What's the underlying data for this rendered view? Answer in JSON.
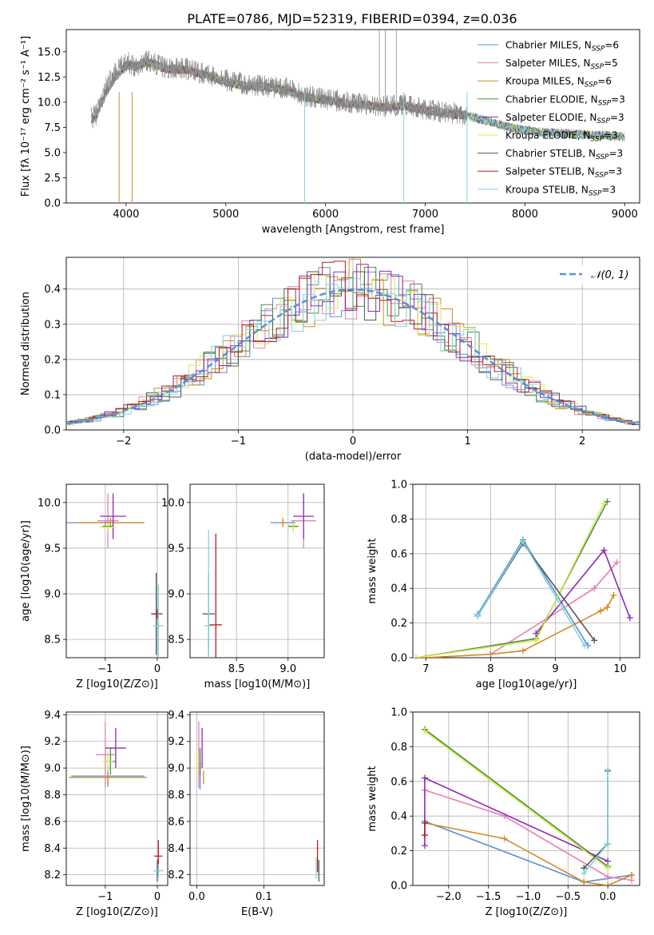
{
  "figure": {
    "title": "PLATE=0786, MJD=52319, FIBERID=0394, z=0.036"
  },
  "series_styles": [
    {
      "name": "Chabrier MILES",
      "nssp": "6",
      "color": "#5b8fd6"
    },
    {
      "name": "Salpeter MILES",
      "nssp": "5",
      "color": "#e87fb4"
    },
    {
      "name": "Kroupa MILES",
      "nssp": "6",
      "color": "#d08a26"
    },
    {
      "name": "Chabrier ELODIE",
      "nssp": "3",
      "color": "#4c8c4a"
    },
    {
      "name": "Salpeter ELODIE",
      "nssp": "3",
      "color": "#8e2bb2"
    },
    {
      "name": "Kroupa ELODIE",
      "nssp": "3",
      "color": "#d6ec4c"
    },
    {
      "name": "Chabrier STELIB",
      "nssp": "3",
      "color": "#555555"
    },
    {
      "name": "Salpeter STELIB",
      "nssp": "3",
      "color": "#b81c1c"
    },
    {
      "name": "Kroupa STELIB",
      "nssp": "3",
      "color": "#7fd3de"
    }
  ],
  "chart_data": [
    {
      "id": "spectrum",
      "type": "line",
      "xlabel": "wavelength [Angstrom, rest frame]",
      "ylabel": "Flux [fλ 10⁻¹⁷ erg cm⁻² s⁻¹ A⁻¹]",
      "xlim": [
        3400,
        9150
      ],
      "ylim": [
        0,
        17.2
      ],
      "xticks": [
        4000,
        5000,
        6000,
        7000,
        8000,
        9000
      ],
      "yticks": [
        0.0,
        2.5,
        5.0,
        7.5,
        10.0,
        12.5,
        15.0
      ],
      "data_color": "#888888",
      "data_profile": {
        "x": [
          3650,
          3700,
          3800,
          3900,
          4000,
          4100,
          4200,
          4400,
          4600,
          4800,
          5000,
          5200,
          5400,
          5600,
          5800,
          6000,
          6200,
          6400,
          6600,
          6800,
          7000,
          7200,
          7400
        ],
        "y": [
          8.4,
          8.8,
          11.5,
          13.0,
          14.0,
          13.6,
          14.2,
          13.4,
          13.3,
          12.8,
          12.2,
          11.8,
          11.6,
          11.4,
          10.6,
          10.3,
          10.0,
          9.8,
          9.6,
          9.7,
          9.3,
          9.0,
          8.8
        ]
      },
      "model_profile": {
        "x": [
          3650,
          3700,
          3800,
          3900,
          4000,
          4100,
          4200,
          4400,
          4600,
          4800,
          5000,
          5200,
          5400,
          5600,
          5800,
          6000,
          6200,
          6400,
          6600,
          6800,
          7000,
          7200,
          7400,
          7600,
          7800,
          8000,
          8200,
          8400,
          8600,
          8800,
          9000
        ],
        "y": [
          8.3,
          8.5,
          11.0,
          12.5,
          13.8,
          13.5,
          14.0,
          13.3,
          13.2,
          12.7,
          12.0,
          11.6,
          11.5,
          11.2,
          10.5,
          10.2,
          9.9,
          9.7,
          9.5,
          9.6,
          9.2,
          8.9,
          8.7,
          8.2,
          7.6,
          7.2,
          7.0,
          6.9,
          6.8,
          6.7,
          6.6
        ]
      }
    },
    {
      "id": "residuals",
      "type": "histogram",
      "xlabel": "(data-model)/error",
      "ylabel": "Normed distribution",
      "xlim": [
        -2.5,
        2.5
      ],
      "ylim": [
        0,
        0.49
      ],
      "xticks": [
        -2,
        -1,
        0,
        1,
        2
      ],
      "yticks": [
        0.0,
        0.1,
        0.2,
        0.3,
        0.4
      ],
      "legend_label": "𝒩(0, 1)",
      "legend_color": "#5b8fd6"
    },
    {
      "id": "age_vs_Z",
      "type": "errorbar",
      "xlabel": "Z [log10(Z/Z⊙)]",
      "ylabel": "age  [log10(age/yr)]",
      "xlim": [
        -1.75,
        0.2
      ],
      "ylim": [
        8.3,
        10.2
      ],
      "xticks": [
        -1,
        0
      ],
      "xticklabels": [
        "−1",
        "0"
      ],
      "yticks": [
        8.5,
        9.0,
        9.5,
        10.0
      ],
      "yticklabels": [
        "8.5",
        "9.0",
        "9.5",
        "10.0"
      ],
      "points": [
        {
          "s": 0,
          "x": -1.0,
          "y": 9.78,
          "xe": 0.75,
          "ye": 0.03
        },
        {
          "s": 1,
          "x": -0.95,
          "y": 9.8,
          "xe": 0.2,
          "ye": 0.3
        },
        {
          "s": 2,
          "x": -0.9,
          "y": 9.78,
          "xe": 0.65,
          "ye": 0.05
        },
        {
          "s": 3,
          "x": -0.95,
          "y": 9.74,
          "xe": 0.1,
          "ye": 0.05
        },
        {
          "s": 4,
          "x": -0.85,
          "y": 9.85,
          "xe": 0.25,
          "ye": 0.25
        },
        {
          "s": 5,
          "x": -0.95,
          "y": 9.73,
          "xe": 0.15,
          "ye": 0.05
        },
        {
          "s": 6,
          "x": -0.02,
          "y": 8.78,
          "xe": 0.1,
          "ye": 0.45
        },
        {
          "s": 7,
          "x": 0.0,
          "y": 8.78,
          "xe": 0.1,
          "ye": 0.05
        },
        {
          "s": 8,
          "x": 0.02,
          "y": 8.65,
          "xe": 0.1,
          "ye": 0.45
        }
      ]
    },
    {
      "id": "age_vs_mass",
      "type": "errorbar",
      "xlabel": "mass [log10(M/M⊙)]",
      "ylabel": "",
      "xlim": [
        8.05,
        9.35
      ],
      "ylim": [
        8.3,
        10.2
      ],
      "xticks": [
        8.5,
        9.0
      ],
      "xticklabels": [
        "8.5",
        "9.0"
      ],
      "yticks": [
        8.5,
        9.0,
        9.5,
        10.0
      ],
      "yticklabels": [
        "8.5",
        "9.0",
        "9.5",
        "10.0"
      ],
      "points": [
        {
          "s": 0,
          "x": 8.95,
          "y": 9.78,
          "xe": 0.12,
          "ye": 0.03
        },
        {
          "s": 1,
          "x": 9.15,
          "y": 9.8,
          "xe": 0.12,
          "ye": 0.3
        },
        {
          "s": 2,
          "x": 8.95,
          "y": 9.78,
          "xe": 0.03,
          "ye": 0.05
        },
        {
          "s": 3,
          "x": 9.05,
          "y": 9.74,
          "xe": 0.05,
          "ye": 0.05
        },
        {
          "s": 4,
          "x": 9.15,
          "y": 9.85,
          "xe": 0.1,
          "ye": 0.25
        },
        {
          "s": 5,
          "x": 9.05,
          "y": 9.73,
          "xe": 0.04,
          "ye": 0.05
        },
        {
          "s": 6,
          "x": 8.23,
          "y": 8.78,
          "xe": 0.06,
          "ye": 0.45
        },
        {
          "s": 7,
          "x": 8.3,
          "y": 8.66,
          "xe": 0.06,
          "ye": 1.0
        },
        {
          "s": 8,
          "x": 8.23,
          "y": 8.65,
          "xe": 0.04,
          "ye": 1.05
        }
      ]
    },
    {
      "id": "mw_vs_age",
      "type": "line",
      "xlabel": "age  [log10(age/yr)]",
      "ylabel": "mass weight",
      "xlim": [
        6.8,
        10.3
      ],
      "ylim": [
        0,
        1.0
      ],
      "xticks": [
        7,
        8,
        9,
        10
      ],
      "xticklabels": [
        "7",
        "8",
        "9",
        "10"
      ],
      "yticks": [
        0.0,
        0.2,
        0.4,
        0.6,
        0.8,
        1.0
      ],
      "yticklabels": [
        "0.0",
        "0.2",
        "0.4",
        "0.6",
        "0.8",
        "1.0"
      ],
      "series": [
        {
          "s": 0,
          "x": [
            7.8,
            8.5,
            9.5
          ],
          "y": [
            0.25,
            0.68,
            0.07
          ]
        },
        {
          "s": 1,
          "x": [
            8.0,
            9.6,
            9.95
          ],
          "y": [
            0.02,
            0.4,
            0.55
          ]
        },
        {
          "s": 2,
          "x": [
            7.0,
            8.0,
            8.5,
            9.7,
            9.8,
            9.9
          ],
          "y": [
            0.0,
            0.02,
            0.04,
            0.27,
            0.29,
            0.36
          ]
        },
        {
          "s": 3,
          "x": [
            6.85,
            8.7,
            9.8
          ],
          "y": [
            0.0,
            0.11,
            0.9
          ]
        },
        {
          "s": 4,
          "x": [
            8.7,
            9.75,
            10.15
          ],
          "y": [
            0.14,
            0.62,
            0.23
          ]
        },
        {
          "s": 5,
          "x": [
            6.85,
            8.7,
            9.75
          ],
          "y": [
            0.0,
            0.1,
            0.89
          ]
        },
        {
          "s": 6,
          "x": [
            7.8,
            8.5,
            9.6
          ],
          "y": [
            0.24,
            0.66,
            0.1
          ]
        },
        {
          "s": 8,
          "x": [
            7.8,
            8.5,
            9.45
          ],
          "y": [
            0.24,
            0.67,
            0.07
          ]
        }
      ]
    },
    {
      "id": "mass_vs_Z",
      "type": "errorbar",
      "xlabel": "Z [log10(Z/Z⊙)]",
      "ylabel": "mass [log10(M/M⊙)]",
      "xlim": [
        -1.75,
        0.2
      ],
      "ylim": [
        8.12,
        9.42
      ],
      "xticks": [
        -1,
        0
      ],
      "xticklabels": [
        "−1",
        "0"
      ],
      "yticks": [
        8.2,
        8.4,
        8.6,
        8.8,
        9.0,
        9.2,
        9.4
      ],
      "yticklabels": [
        "8.2",
        "8.4",
        "8.6",
        "8.8",
        "9.0",
        "9.2",
        "9.4"
      ],
      "points": [
        {
          "s": 0,
          "x": -0.95,
          "y": 8.94,
          "xe": 0.7,
          "ye": 0.08
        },
        {
          "s": 1,
          "x": -1.0,
          "y": 9.1,
          "xe": 0.18,
          "ye": 0.25
        },
        {
          "s": 2,
          "x": -0.95,
          "y": 8.93,
          "xe": 0.75,
          "ye": 0.05
        },
        {
          "s": 3,
          "x": -0.9,
          "y": 9.05,
          "xe": 0.1,
          "ye": 0.1
        },
        {
          "s": 4,
          "x": -0.8,
          "y": 9.15,
          "xe": 0.2,
          "ye": 0.15
        },
        {
          "s": 5,
          "x": -0.95,
          "y": 9.05,
          "xe": 0.1,
          "ye": 0.08
        },
        {
          "s": 6,
          "x": 0.0,
          "y": 8.23,
          "xe": 0.05,
          "ye": 0.08
        },
        {
          "s": 7,
          "x": 0.02,
          "y": 8.34,
          "xe": 0.08,
          "ye": 0.12
        },
        {
          "s": 8,
          "x": 0.02,
          "y": 8.23,
          "xe": 0.1,
          "ye": 0.05
        }
      ]
    },
    {
      "id": "mass_vs_ebv",
      "type": "errorbar",
      "xlabel": "E(B-V)",
      "ylabel": "",
      "xlim": [
        -0.01,
        0.19
      ],
      "ylim": [
        8.12,
        9.42
      ],
      "xticks": [
        0.0,
        0.1
      ],
      "xticklabels": [
        "0.0",
        "0.1"
      ],
      "yticks": [
        8.2,
        8.4,
        8.6,
        8.8,
        9.0,
        9.2,
        9.4
      ],
      "yticklabels": [
        "8.2",
        "8.4",
        "8.6",
        "8.8",
        "9.0",
        "9.2",
        "9.4"
      ],
      "points": [
        {
          "s": 0,
          "x": 0.005,
          "y": 8.94,
          "xe": 0.0,
          "ye": 0.1
        },
        {
          "s": 1,
          "x": 0.003,
          "y": 9.1,
          "xe": 0.0,
          "ye": 0.25
        },
        {
          "s": 2,
          "x": 0.01,
          "y": 8.93,
          "xe": 0.0,
          "ye": 0.05
        },
        {
          "s": 3,
          "x": 0.005,
          "y": 9.05,
          "xe": 0.0,
          "ye": 0.1
        },
        {
          "s": 4,
          "x": 0.008,
          "y": 9.15,
          "xe": 0.0,
          "ye": 0.15
        },
        {
          "s": 5,
          "x": 0.0,
          "y": 9.05,
          "xe": 0.0,
          "ye": 0.08
        },
        {
          "s": 6,
          "x": 0.182,
          "y": 8.23,
          "xe": 0.0,
          "ye": 0.08
        },
        {
          "s": 7,
          "x": 0.18,
          "y": 8.34,
          "xe": 0.0,
          "ye": 0.12
        },
        {
          "s": 8,
          "x": 0.178,
          "y": 8.25,
          "xe": 0.0,
          "ye": 0.08
        }
      ]
    },
    {
      "id": "mw_vs_Z",
      "type": "line",
      "xlabel": "Z [log10(Z/Z⊙)]",
      "ylabel": "mass weight",
      "xlim": [
        -2.45,
        0.4
      ],
      "ylim": [
        0,
        1.0
      ],
      "xticks": [
        -2.0,
        -1.5,
        -1.0,
        -0.5,
        0.0
      ],
      "xticklabels": [
        "−2.0",
        "−1.5",
        "−1.0",
        "−0.5",
        "0.0"
      ],
      "yticks": [
        0.0,
        0.2,
        0.4,
        0.6,
        0.8,
        1.0
      ],
      "yticklabels": [
        "0.0",
        "0.2",
        "0.4",
        "0.6",
        "0.8",
        "1.0"
      ],
      "series": [
        {
          "s": 0,
          "x": [
            -2.3,
            -0.3,
            0.3
          ],
          "y": [
            0.37,
            0.02,
            0.06
          ]
        },
        {
          "s": 1,
          "x": [
            -2.3,
            -1.3,
            0.0,
            0.3
          ],
          "y": [
            0.55,
            0.4,
            0.05,
            0.03
          ]
        },
        {
          "s": 2,
          "x": [
            -2.3,
            -1.3,
            -0.3,
            0.0,
            0.3
          ],
          "y": [
            0.36,
            0.27,
            0.02,
            0.0,
            0.06
          ]
        },
        {
          "s": 3,
          "x": [
            -2.3,
            0.0
          ],
          "y": [
            0.9,
            0.11
          ]
        },
        {
          "s": 4,
          "x": [
            -2.3,
            -2.3,
            0.0
          ],
          "y": [
            0.23,
            0.62,
            0.14
          ]
        },
        {
          "s": 5,
          "x": [
            -2.3,
            0.0
          ],
          "y": [
            0.89,
            0.1
          ]
        },
        {
          "s": 6,
          "x": [
            -0.3,
            0.0,
            0.0
          ],
          "y": [
            0.1,
            0.24,
            0.66
          ]
        },
        {
          "s": 7,
          "x": [
            -2.3,
            -2.3
          ],
          "y": [
            0.29,
            0.36
          ]
        },
        {
          "s": 8,
          "x": [
            -0.3,
            0.0,
            0.0
          ],
          "y": [
            0.07,
            0.24,
            0.67
          ]
        }
      ]
    }
  ]
}
